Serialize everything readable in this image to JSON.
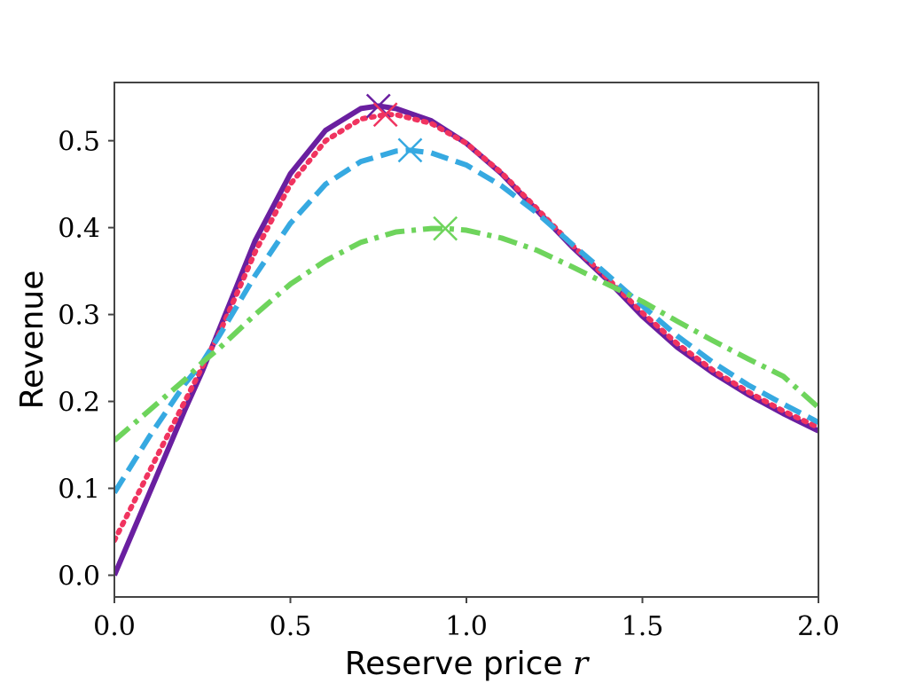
{
  "chart_data": {
    "type": "line",
    "title": "",
    "xlabel": "Reserve price",
    "xlabel_var": "r",
    "ylabel": "Revenue",
    "xlim": [
      0,
      2
    ],
    "ylim": [
      -0.025,
      0.567
    ],
    "grid": false,
    "legend": "none",
    "x_ticks": [
      0.0,
      0.5,
      1.0,
      1.5,
      2.0
    ],
    "x_tick_labels": [
      "0.0",
      "0.5",
      "1.0",
      "1.5",
      "2.0"
    ],
    "y_ticks": [
      0.0,
      0.1,
      0.2,
      0.3,
      0.4,
      0.5
    ],
    "y_tick_labels": [
      "0.0",
      "0.1",
      "0.2",
      "0.3",
      "0.4",
      "0.5"
    ],
    "series": [
      {
        "color": "#6a1fa0",
        "style": "solid",
        "x": [
          0.0,
          0.1,
          0.2,
          0.25,
          0.3,
          0.4,
          0.5,
          0.6,
          0.7,
          0.75,
          0.8,
          0.9,
          1.0,
          1.1,
          1.2,
          1.3,
          1.4,
          1.5,
          1.6,
          1.7,
          1.8,
          1.9,
          2.0
        ],
        "y": [
          0.0,
          0.095,
          0.19,
          0.235,
          0.285,
          0.385,
          0.462,
          0.512,
          0.537,
          0.54,
          0.537,
          0.523,
          0.497,
          0.462,
          0.42,
          0.378,
          0.34,
          0.298,
          0.262,
          0.233,
          0.208,
          0.186,
          0.166
        ],
        "max_marker": [
          0.75,
          0.54
        ]
      },
      {
        "color": "#f0335f",
        "style": "dotted",
        "x": [
          0.0,
          0.1,
          0.2,
          0.25,
          0.3,
          0.4,
          0.5,
          0.6,
          0.7,
          0.77,
          0.8,
          0.9,
          1.0,
          1.1,
          1.2,
          1.3,
          1.4,
          1.5,
          1.6,
          1.7,
          1.8,
          1.9,
          2.0
        ],
        "y": [
          0.04,
          0.12,
          0.2,
          0.24,
          0.28,
          0.372,
          0.45,
          0.5,
          0.525,
          0.53,
          0.53,
          0.52,
          0.497,
          0.463,
          0.422,
          0.38,
          0.342,
          0.302,
          0.266,
          0.236,
          0.211,
          0.189,
          0.17
        ],
        "max_marker": [
          0.77,
          0.53
        ]
      },
      {
        "color": "#36a9e1",
        "style": "dashed",
        "x": [
          0.0,
          0.1,
          0.2,
          0.25,
          0.3,
          0.4,
          0.5,
          0.6,
          0.7,
          0.8,
          0.84,
          0.9,
          1.0,
          1.1,
          1.2,
          1.3,
          1.4,
          1.5,
          1.6,
          1.7,
          1.8,
          1.9,
          2.0
        ],
        "y": [
          0.095,
          0.16,
          0.22,
          0.245,
          0.277,
          0.345,
          0.405,
          0.45,
          0.476,
          0.488,
          0.489,
          0.486,
          0.472,
          0.448,
          0.417,
          0.381,
          0.346,
          0.31,
          0.275,
          0.245,
          0.219,
          0.197,
          0.176
        ],
        "max_marker": [
          0.84,
          0.489
        ]
      },
      {
        "color": "#6ed45c",
        "style": "dashdot",
        "x": [
          0.0,
          0.1,
          0.2,
          0.25,
          0.3,
          0.4,
          0.5,
          0.6,
          0.7,
          0.8,
          0.9,
          0.94,
          1.0,
          1.1,
          1.2,
          1.3,
          1.4,
          1.5,
          1.6,
          1.7,
          1.8,
          1.9,
          2.0
        ],
        "y": [
          0.155,
          0.19,
          0.225,
          0.245,
          0.262,
          0.3,
          0.335,
          0.362,
          0.383,
          0.395,
          0.399,
          0.399,
          0.397,
          0.388,
          0.374,
          0.355,
          0.335,
          0.315,
          0.292,
          0.27,
          0.249,
          0.229,
          0.193
        ],
        "max_marker": [
          0.94,
          0.399
        ]
      }
    ]
  }
}
